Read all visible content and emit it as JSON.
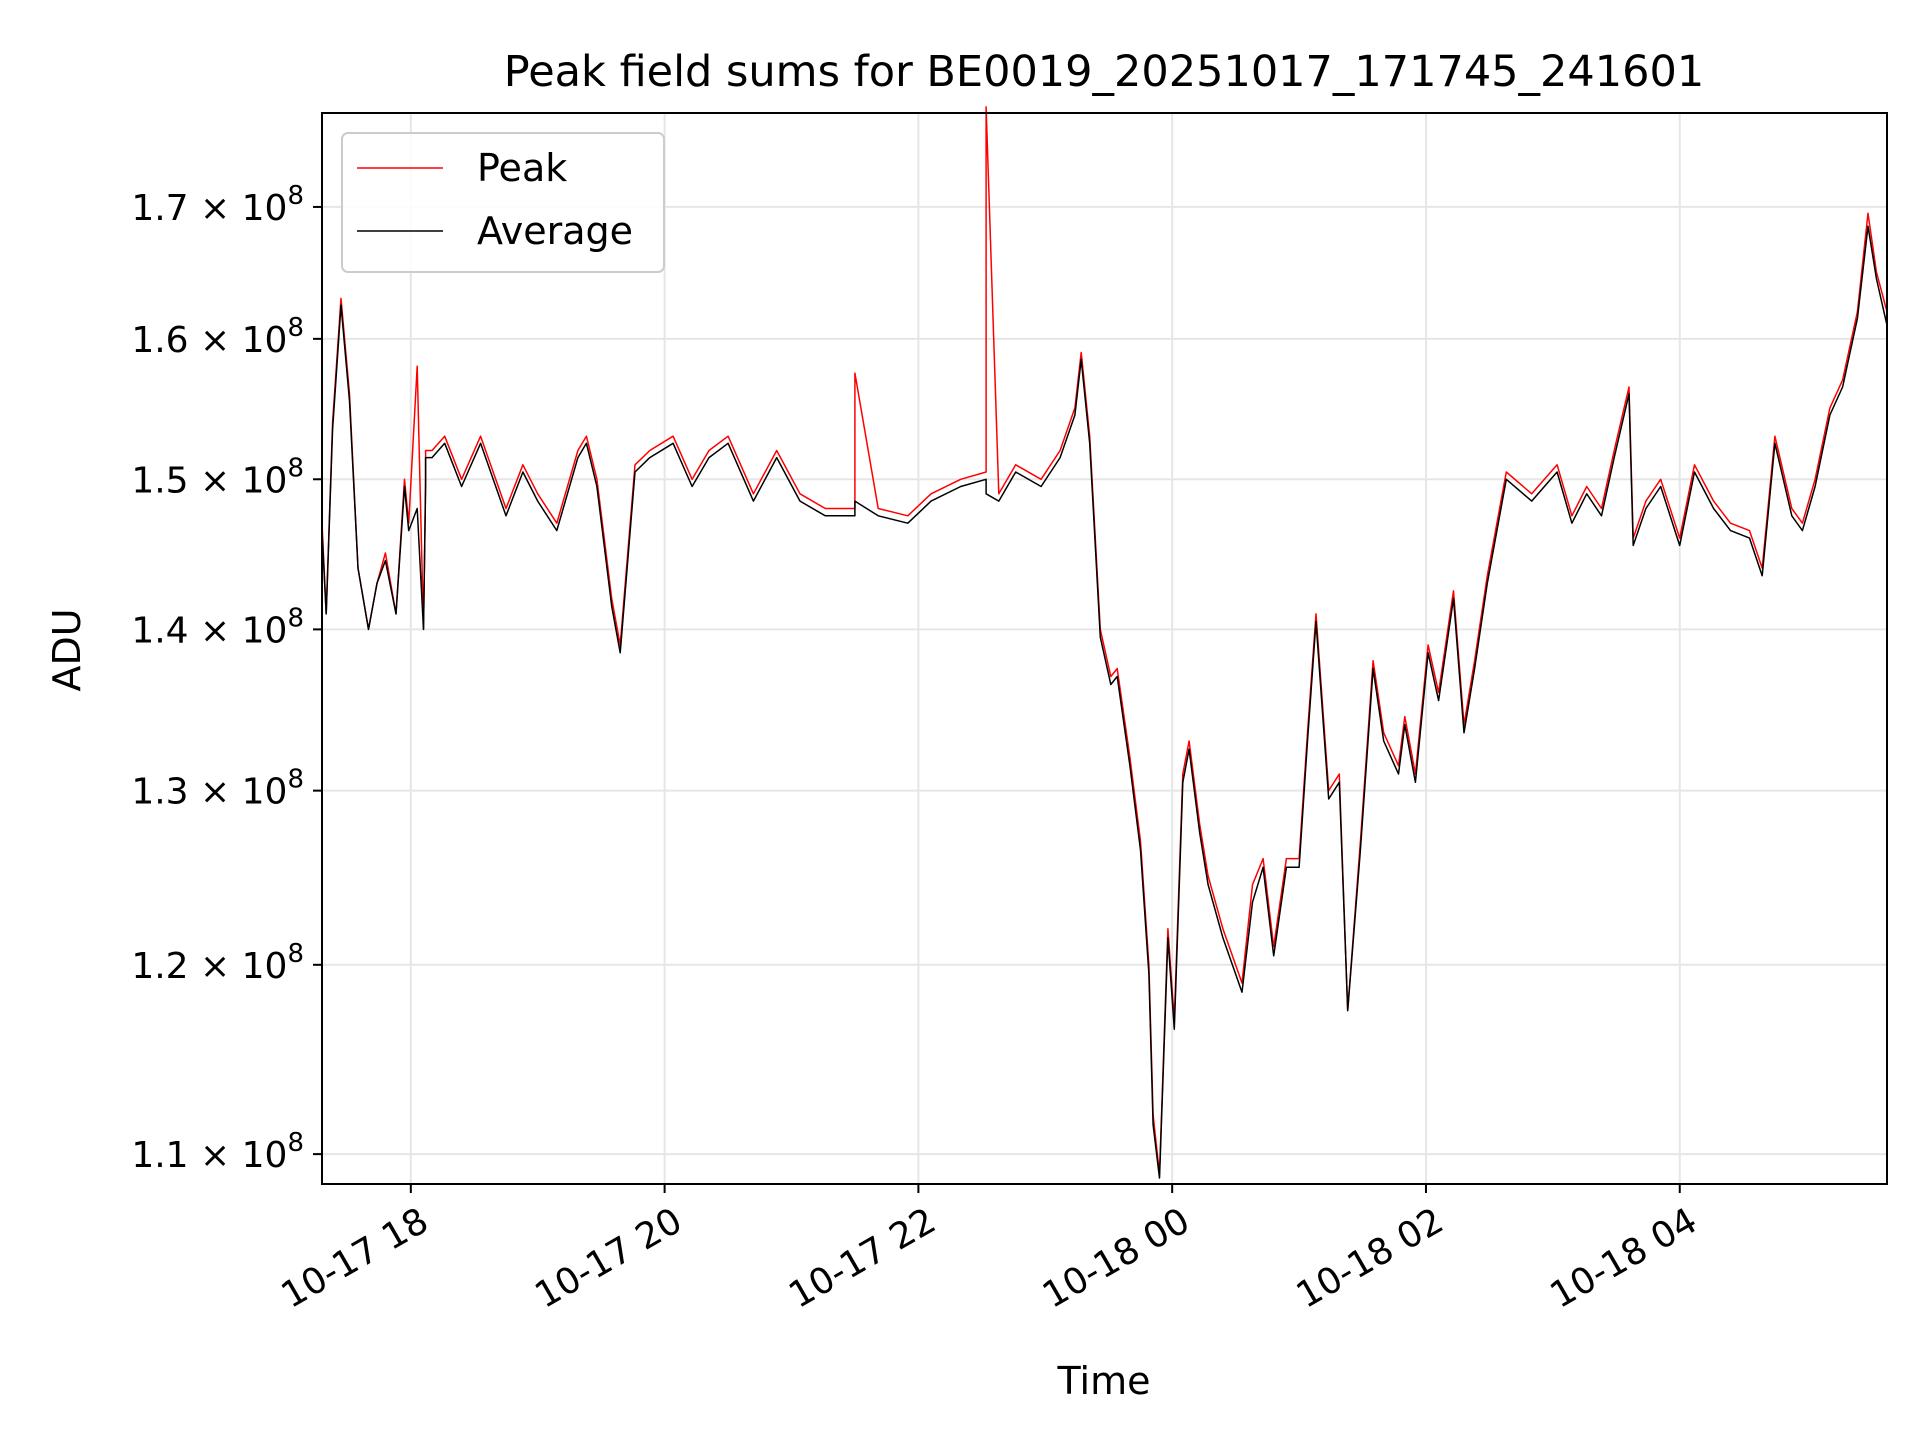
{
  "chart_data": {
    "type": "line",
    "title": "Peak field sums for BE0019_20251017_171745_241601",
    "xlabel": "Time",
    "ylabel": "ADU",
    "x_ticks": [
      "10-17 18",
      "10-17 20",
      "10-17 22",
      "10-18 00",
      "10-18 02",
      "10-18 04"
    ],
    "y_ticks": [
      {
        "value": 110000000,
        "mantissa": "1.1",
        "base": "10",
        "exp": "8"
      },
      {
        "value": 120000000,
        "mantissa": "1.2",
        "base": "10",
        "exp": "8"
      },
      {
        "value": 130000000,
        "mantissa": "1.3",
        "base": "10",
        "exp": "8"
      },
      {
        "value": 140000000,
        "mantissa": "1.4",
        "base": "10",
        "exp": "8"
      },
      {
        "value": 150000000,
        "mantissa": "1.5",
        "base": "10",
        "exp": "8"
      },
      {
        "value": 160000000,
        "mantissa": "1.6",
        "base": "10",
        "exp": "8"
      },
      {
        "value": 170000000,
        "mantissa": "1.7",
        "base": "10",
        "exp": "8"
      }
    ],
    "x_range": [
      "2025-10-17 17:18",
      "2025-10-18 05:38"
    ],
    "ylim": [
      108500000,
      177500000
    ],
    "y_scale": "log",
    "grid": true,
    "legend_position": "top-left",
    "series": [
      {
        "name": "Peak",
        "color": "#ff0000",
        "x": [
          "2025-10-17 17:18",
          "2025-10-17 17:20",
          "2025-10-17 17:23",
          "2025-10-17 17:27",
          "2025-10-17 17:31",
          "2025-10-17 17:35",
          "2025-10-17 17:40",
          "2025-10-17 17:44",
          "2025-10-17 17:48",
          "2025-10-17 17:53",
          "2025-10-17 17:57",
          "2025-10-17 17:59",
          "2025-10-17 18:03",
          "2025-10-17 18:06",
          "2025-10-17 18:07",
          "2025-10-17 18:07",
          "2025-10-17 18:10",
          "2025-10-17 18:16",
          "2025-10-17 18:24",
          "2025-10-17 18:33",
          "2025-10-17 18:45",
          "2025-10-17 18:53",
          "2025-10-17 19:00",
          "2025-10-17 19:09",
          "2025-10-17 19:19",
          "2025-10-17 19:23",
          "2025-10-17 19:28",
          "2025-10-17 19:35",
          "2025-10-17 19:39",
          "2025-10-17 19:46",
          "2025-10-17 19:53",
          "2025-10-17 20:04",
          "2025-10-17 20:13",
          "2025-10-17 20:21",
          "2025-10-17 20:30",
          "2025-10-17 20:42",
          "2025-10-17 20:53",
          "2025-10-17 21:04",
          "2025-10-17 21:16",
          "2025-10-17 21:30",
          "2025-10-17 21:30",
          "2025-10-17 21:41",
          "2025-10-17 21:55",
          "2025-10-17 22:06",
          "2025-10-17 22:20",
          "2025-10-17 22:32",
          "2025-10-17 22:32",
          "2025-10-17 22:38",
          "2025-10-17 22:46",
          "2025-10-17 22:58",
          "2025-10-17 23:07",
          "2025-10-17 23:14",
          "2025-10-17 23:17",
          "2025-10-17 23:21",
          "2025-10-17 23:26",
          "2025-10-17 23:31",
          "2025-10-17 23:34",
          "2025-10-17 23:40",
          "2025-10-17 23:45",
          "2025-10-17 23:49",
          "2025-10-17 23:51",
          "2025-10-17 23:54",
          "2025-10-17 23:58",
          "2025-10-18 00:01",
          "2025-10-18 00:05",
          "2025-10-18 00:08",
          "2025-10-18 00:13",
          "2025-10-18 00:17",
          "2025-10-18 00:24",
          "2025-10-18 00:33",
          "2025-10-18 00:38",
          "2025-10-18 00:43",
          "2025-10-18 00:48",
          "2025-10-18 00:54",
          "2025-10-18 01:00",
          "2025-10-18 01:04",
          "2025-10-18 01:08",
          "2025-10-18 01:14",
          "2025-10-18 01:19",
          "2025-10-18 01:23",
          "2025-10-18 01:29",
          "2025-10-18 01:35",
          "2025-10-18 01:40",
          "2025-10-18 01:47",
          "2025-10-18 01:50",
          "2025-10-18 01:55",
          "2025-10-18 02:01",
          "2025-10-18 02:06",
          "2025-10-18 02:13",
          "2025-10-18 02:18",
          "2025-10-18 02:23",
          "2025-10-18 02:29",
          "2025-10-18 02:38",
          "2025-10-18 02:50",
          "2025-10-18 02:56",
          "2025-10-18 03:02",
          "2025-10-18 03:09",
          "2025-10-18 03:16",
          "2025-10-18 03:23",
          "2025-10-18 03:29",
          "2025-10-18 03:36",
          "2025-10-18 03:38",
          "2025-10-18 03:44",
          "2025-10-18 03:51",
          "2025-10-18 04:00",
          "2025-10-18 04:07",
          "2025-10-18 04:16",
          "2025-10-18 04:24",
          "2025-10-18 04:33",
          "2025-10-18 04:39",
          "2025-10-18 04:45",
          "2025-10-18 04:53",
          "2025-10-18 04:58",
          "2025-10-18 05:04",
          "2025-10-18 05:11",
          "2025-10-18 05:17",
          "2025-10-18 05:24",
          "2025-10-18 05:29",
          "2025-10-18 05:33",
          "2025-10-18 05:38"
        ],
        "y": [
          147000000,
          141000000,
          154000000,
          163000000,
          156000000,
          144000000,
          140000000,
          143000000,
          145000000,
          141000000,
          150000000,
          147000000,
          158000000,
          140000000,
          150000000,
          152000000,
          152000000,
          153000000,
          150000000,
          153000000,
          148000000,
          151000000,
          149000000,
          147000000,
          152000000,
          153000000,
          150000000,
          142000000,
          139000000,
          151000000,
          152000000,
          153000000,
          150000000,
          152000000,
          153000000,
          149000000,
          152000000,
          149000000,
          148000000,
          148000000,
          157500000,
          148000000,
          147500000,
          149000000,
          150000000,
          150500000,
          178000000,
          149000000,
          151000000,
          150000000,
          152000000,
          155000000,
          159000000,
          153000000,
          140000000,
          137000000,
          137500000,
          132000000,
          127000000,
          120000000,
          112000000,
          109000000,
          122000000,
          117000000,
          131000000,
          133000000,
          128000000,
          125000000,
          122000000,
          119000000,
          124500000,
          126000000,
          121000000,
          126000000,
          126000000,
          133500000,
          141000000,
          130000000,
          131000000,
          117500000,
          127000000,
          138000000,
          133500000,
          131500000,
          134500000,
          131000000,
          139000000,
          136000000,
          142500000,
          134000000,
          138000000,
          143500000,
          150500000,
          149000000,
          150000000,
          151000000,
          147500000,
          149500000,
          148000000,
          152000000,
          156500000,
          146000000,
          148500000,
          150000000,
          146000000,
          151000000,
          148500000,
          147000000,
          146500000,
          144000000,
          153000000,
          148000000,
          147000000,
          150000000,
          155000000,
          157000000,
          162000000,
          169500000,
          165000000,
          162000000
        ]
      },
      {
        "name": "Average",
        "color": "#000000",
        "x": [
          "2025-10-17 17:18",
          "2025-10-17 17:20",
          "2025-10-17 17:23",
          "2025-10-17 17:27",
          "2025-10-17 17:31",
          "2025-10-17 17:35",
          "2025-10-17 17:40",
          "2025-10-17 17:44",
          "2025-10-17 17:48",
          "2025-10-17 17:53",
          "2025-10-17 17:57",
          "2025-10-17 17:59",
          "2025-10-17 18:03",
          "2025-10-17 18:06",
          "2025-10-17 18:07",
          "2025-10-17 18:07",
          "2025-10-17 18:10",
          "2025-10-17 18:16",
          "2025-10-17 18:24",
          "2025-10-17 18:33",
          "2025-10-17 18:45",
          "2025-10-17 18:53",
          "2025-10-17 19:00",
          "2025-10-17 19:09",
          "2025-10-17 19:19",
          "2025-10-17 19:23",
          "2025-10-17 19:28",
          "2025-10-17 19:35",
          "2025-10-17 19:39",
          "2025-10-17 19:46",
          "2025-10-17 19:53",
          "2025-10-17 20:04",
          "2025-10-17 20:13",
          "2025-10-17 20:21",
          "2025-10-17 20:30",
          "2025-10-17 20:42",
          "2025-10-17 20:53",
          "2025-10-17 21:04",
          "2025-10-17 21:16",
          "2025-10-17 21:30",
          "2025-10-17 21:30",
          "2025-10-17 21:41",
          "2025-10-17 21:55",
          "2025-10-17 22:06",
          "2025-10-17 22:20",
          "2025-10-17 22:32",
          "2025-10-17 22:32",
          "2025-10-17 22:38",
          "2025-10-17 22:46",
          "2025-10-17 22:58",
          "2025-10-17 23:07",
          "2025-10-17 23:14",
          "2025-10-17 23:17",
          "2025-10-17 23:21",
          "2025-10-17 23:26",
          "2025-10-17 23:31",
          "2025-10-17 23:34",
          "2025-10-17 23:40",
          "2025-10-17 23:45",
          "2025-10-17 23:49",
          "2025-10-17 23:51",
          "2025-10-17 23:54",
          "2025-10-17 23:58",
          "2025-10-18 00:01",
          "2025-10-18 00:05",
          "2025-10-18 00:08",
          "2025-10-18 00:13",
          "2025-10-18 00:17",
          "2025-10-18 00:24",
          "2025-10-18 00:33",
          "2025-10-18 00:38",
          "2025-10-18 00:43",
          "2025-10-18 00:48",
          "2025-10-18 00:54",
          "2025-10-18 01:00",
          "2025-10-18 01:04",
          "2025-10-18 01:08",
          "2025-10-18 01:14",
          "2025-10-18 01:19",
          "2025-10-18 01:23",
          "2025-10-18 01:29",
          "2025-10-18 01:35",
          "2025-10-18 01:40",
          "2025-10-18 01:47",
          "2025-10-18 01:50",
          "2025-10-18 01:55",
          "2025-10-18 02:01",
          "2025-10-18 02:06",
          "2025-10-18 02:13",
          "2025-10-18 02:18",
          "2025-10-18 02:23",
          "2025-10-18 02:29",
          "2025-10-18 02:38",
          "2025-10-18 02:50",
          "2025-10-18 02:56",
          "2025-10-18 03:02",
          "2025-10-18 03:09",
          "2025-10-18 03:16",
          "2025-10-18 03:23",
          "2025-10-18 03:29",
          "2025-10-18 03:36",
          "2025-10-18 03:38",
          "2025-10-18 03:44",
          "2025-10-18 03:51",
          "2025-10-18 04:00",
          "2025-10-18 04:07",
          "2025-10-18 04:16",
          "2025-10-18 04:24",
          "2025-10-18 04:33",
          "2025-10-18 04:39",
          "2025-10-18 04:45",
          "2025-10-18 04:53",
          "2025-10-18 04:58",
          "2025-10-18 05:04",
          "2025-10-18 05:11",
          "2025-10-18 05:17",
          "2025-10-18 05:24",
          "2025-10-18 05:29",
          "2025-10-18 05:33",
          "2025-10-18 05:38"
        ],
        "y": [
          146500000,
          141000000,
          153500000,
          162500000,
          155500000,
          144000000,
          140000000,
          143000000,
          144500000,
          141000000,
          149500000,
          146500000,
          148000000,
          140000000,
          149500000,
          151500000,
          151500000,
          152500000,
          149500000,
          152500000,
          147500000,
          150500000,
          148500000,
          146500000,
          151500000,
          152500000,
          149500000,
          141500000,
          138500000,
          150500000,
          151500000,
          152500000,
          149500000,
          151500000,
          152500000,
          148500000,
          151500000,
          148500000,
          147500000,
          147500000,
          148500000,
          147500000,
          147000000,
          148500000,
          149500000,
          150000000,
          149000000,
          148500000,
          150500000,
          149500000,
          151500000,
          154500000,
          158500000,
          152500000,
          139500000,
          136500000,
          137000000,
          131500000,
          126500000,
          119500000,
          111500000,
          108800000,
          121500000,
          116500000,
          130500000,
          132500000,
          127500000,
          124500000,
          121500000,
          118500000,
          123500000,
          125500000,
          120500000,
          125500000,
          125500000,
          133000000,
          140500000,
          129500000,
          130500000,
          117500000,
          126500000,
          137500000,
          133000000,
          131000000,
          134000000,
          130500000,
          138500000,
          135500000,
          142000000,
          133500000,
          137500000,
          143000000,
          150000000,
          148500000,
          149500000,
          150500000,
          147000000,
          149000000,
          147500000,
          151500000,
          156000000,
          145500000,
          148000000,
          149500000,
          145500000,
          150500000,
          148000000,
          146500000,
          146000000,
          143500000,
          152500000,
          147500000,
          146500000,
          149500000,
          154500000,
          156500000,
          161500000,
          168500000,
          164500000,
          161000000
        ]
      }
    ]
  }
}
